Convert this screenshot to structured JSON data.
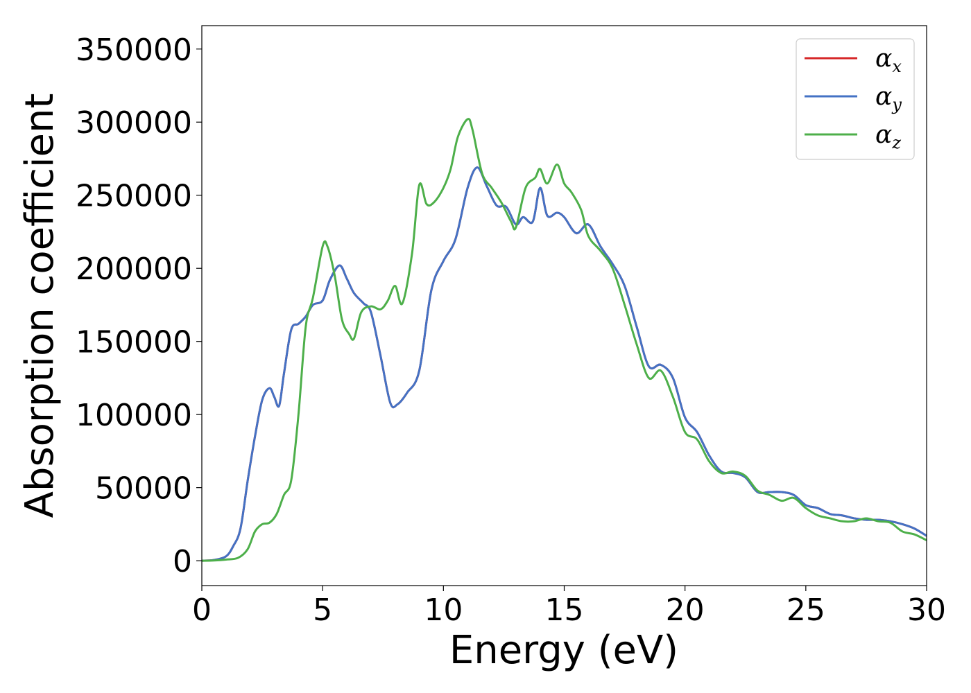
{
  "chart_data": {
    "type": "line",
    "title": "",
    "xlabel": "Energy (eV)",
    "ylabel": "Absorption coefficient",
    "xlim": [
      0,
      30
    ],
    "ylim": [
      -17000,
      366000
    ],
    "xticks": [
      0,
      5,
      10,
      15,
      20,
      25,
      30
    ],
    "yticks": [
      0,
      50000,
      100000,
      150000,
      200000,
      250000,
      300000,
      350000
    ],
    "grid": false,
    "legend_position": "top-right",
    "series": [
      {
        "name": "α_x",
        "name_base": "α",
        "name_sub": "x",
        "color": "#d62728",
        "x": [
          0,
          0.5,
          1,
          1.3,
          1.6,
          1.9,
          2.2,
          2.5,
          2.8,
          3.0,
          3.2,
          3.4,
          3.7,
          4.0,
          4.3,
          4.6,
          5.0,
          5.3,
          5.7,
          6.0,
          6.3,
          6.7,
          7.0,
          7.4,
          7.8,
          8.1,
          8.5,
          9.0,
          9.5,
          10.0,
          10.5,
          11.0,
          11.4,
          11.8,
          12.2,
          12.6,
          13.0,
          13.3,
          13.7,
          14.0,
          14.3,
          14.7,
          15.0,
          15.5,
          16.0,
          16.5,
          17.0,
          17.5,
          18.0,
          18.5,
          19.0,
          19.5,
          20.0,
          20.5,
          21.0,
          21.5,
          22.0,
          22.5,
          23.0,
          23.5,
          24.0,
          24.5,
          25.0,
          25.5,
          26.0,
          26.5,
          27.0,
          27.5,
          28.0,
          28.5,
          29.0,
          29.5,
          30.0
        ],
        "y": [
          0,
          500,
          3000,
          10000,
          22000,
          55000,
          85000,
          110000,
          118000,
          112000,
          106000,
          128000,
          158000,
          162000,
          167000,
          175000,
          178000,
          192000,
          202000,
          193000,
          183000,
          176000,
          170000,
          140000,
          108000,
          107000,
          115000,
          130000,
          185000,
          205000,
          220000,
          255000,
          269000,
          256000,
          243000,
          242000,
          230000,
          235000,
          232000,
          255000,
          236000,
          238000,
          235000,
          224000,
          230000,
          215000,
          203000,
          188000,
          160000,
          133000,
          134000,
          125000,
          98000,
          88000,
          72000,
          61000,
          60000,
          57000,
          47000,
          47000,
          47000,
          45000,
          38000,
          36000,
          32000,
          31000,
          29000,
          28000,
          28000,
          27000,
          25000,
          22000,
          17000
        ]
      },
      {
        "name": "α_y",
        "name_base": "α",
        "name_sub": "y",
        "color": "#4472c4",
        "x": [
          0,
          0.5,
          1,
          1.3,
          1.6,
          1.9,
          2.2,
          2.5,
          2.8,
          3.0,
          3.2,
          3.4,
          3.7,
          4.0,
          4.3,
          4.6,
          5.0,
          5.3,
          5.7,
          6.0,
          6.3,
          6.7,
          7.0,
          7.4,
          7.8,
          8.1,
          8.5,
          9.0,
          9.5,
          10.0,
          10.5,
          11.0,
          11.4,
          11.8,
          12.2,
          12.6,
          13.0,
          13.3,
          13.7,
          14.0,
          14.3,
          14.7,
          15.0,
          15.5,
          16.0,
          16.5,
          17.0,
          17.5,
          18.0,
          18.5,
          19.0,
          19.5,
          20.0,
          20.5,
          21.0,
          21.5,
          22.0,
          22.5,
          23.0,
          23.5,
          24.0,
          24.5,
          25.0,
          25.5,
          26.0,
          26.5,
          27.0,
          27.5,
          28.0,
          28.5,
          29.0,
          29.5,
          30.0
        ],
        "y": [
          0,
          500,
          3000,
          10000,
          22000,
          55000,
          85000,
          110000,
          118000,
          112000,
          106000,
          128000,
          158000,
          162000,
          167000,
          175000,
          178000,
          192000,
          202000,
          193000,
          183000,
          176000,
          170000,
          140000,
          108000,
          107000,
          115000,
          130000,
          185000,
          205000,
          220000,
          255000,
          269000,
          256000,
          243000,
          242000,
          230000,
          235000,
          232000,
          255000,
          236000,
          238000,
          235000,
          224000,
          230000,
          215000,
          203000,
          188000,
          160000,
          133000,
          134000,
          125000,
          98000,
          88000,
          72000,
          61000,
          60000,
          57000,
          47000,
          47000,
          47000,
          45000,
          38000,
          36000,
          32000,
          31000,
          29000,
          28000,
          28000,
          27000,
          25000,
          22000,
          17000
        ]
      },
      {
        "name": "α_z",
        "name_base": "α",
        "name_sub": "z",
        "color": "#4daf4a",
        "x": [
          0,
          0.5,
          1,
          1.5,
          1.9,
          2.2,
          2.5,
          2.8,
          3.1,
          3.4,
          3.7,
          4.0,
          4.3,
          4.6,
          5.0,
          5.2,
          5.5,
          5.8,
          6.1,
          6.3,
          6.6,
          7.0,
          7.4,
          7.7,
          8.0,
          8.3,
          8.7,
          9.0,
          9.3,
          9.6,
          10.0,
          10.3,
          10.6,
          11.0,
          11.2,
          11.6,
          12.0,
          12.4,
          12.8,
          13.0,
          13.4,
          13.8,
          14.0,
          14.3,
          14.7,
          15.0,
          15.3,
          15.7,
          16.0,
          16.5,
          17.0,
          17.5,
          18.0,
          18.5,
          19.0,
          19.5,
          20.0,
          20.5,
          21.0,
          21.5,
          22.0,
          22.5,
          23.0,
          23.5,
          24.0,
          24.5,
          25.0,
          25.5,
          26.0,
          26.5,
          27.0,
          27.5,
          28.0,
          28.5,
          29.0,
          29.5,
          30.0
        ],
        "y": [
          0,
          200,
          800,
          2000,
          8000,
          20000,
          25000,
          26000,
          32000,
          45000,
          55000,
          100000,
          160000,
          180000,
          215000,
          215000,
          195000,
          165000,
          155000,
          152000,
          170000,
          174000,
          172000,
          178000,
          188000,
          176000,
          210000,
          257000,
          244000,
          245000,
          255000,
          268000,
          290000,
          302000,
          295000,
          265000,
          255000,
          245000,
          232000,
          228000,
          255000,
          262000,
          268000,
          258000,
          271000,
          258000,
          252000,
          240000,
          222000,
          212000,
          200000,
          175000,
          148000,
          125000,
          130000,
          112000,
          88000,
          83000,
          68000,
          60000,
          61000,
          58000,
          48000,
          45000,
          41000,
          43000,
          36000,
          31000,
          29000,
          27000,
          27000,
          29000,
          27000,
          26000,
          20000,
          18000,
          14000
        ]
      }
    ]
  }
}
